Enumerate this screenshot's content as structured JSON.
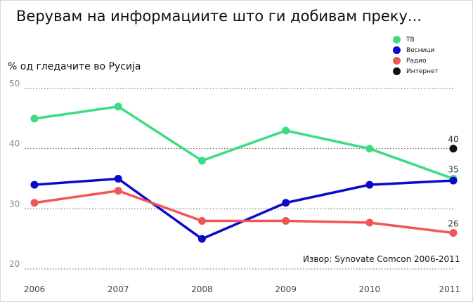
{
  "title": "Верувам на информациите што ги добивам преку...",
  "chart_data": {
    "type": "line",
    "title": "Верувам на информациите што ги добивам преку...",
    "ylabel": "% од гледачите во Русија",
    "xlabel": "",
    "x": [
      "2006",
      "2007",
      "2008",
      "2009",
      "2010",
      "2011"
    ],
    "yticks": [
      20,
      30,
      40,
      50
    ],
    "ylim": [
      20,
      50
    ],
    "grid": "horizontal dotted",
    "legend_position": "top-right",
    "source": "Извор: Synovate Comcon 2006-2011",
    "series": [
      {
        "name": "ТВ",
        "color": "#3ddc84",
        "values": [
          45,
          47,
          38,
          43,
          40,
          35
        ],
        "end_label": "35"
      },
      {
        "name": "Весници",
        "color": "#0a0ac8",
        "values": [
          34,
          35,
          25,
          31,
          34,
          34.7
        ],
        "end_label": ""
      },
      {
        "name": "Радио",
        "color": "#f25555",
        "values": [
          31,
          33,
          28,
          28,
          27.7,
          26
        ],
        "end_label": "26"
      },
      {
        "name": "Интернет",
        "color": "#111111",
        "values": [
          null,
          null,
          null,
          null,
          null,
          40
        ],
        "end_label": "40"
      }
    ]
  }
}
